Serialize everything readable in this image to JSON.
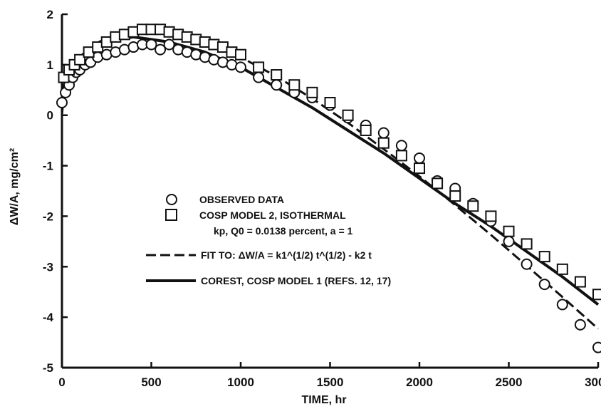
{
  "chart_data": {
    "type": "scatter",
    "xlabel": "TIME, hr",
    "ylabel": "ΔW/A, mg/cm²",
    "xlim": [
      0,
      3000
    ],
    "ylim": [
      -5,
      2
    ],
    "xticks": [
      "0",
      "500",
      "1000",
      "1500",
      "2000",
      "2500",
      "3000"
    ],
    "yticks": [
      "2",
      "1",
      "0",
      "-1",
      "-2",
      "-3",
      "-4",
      "-5"
    ],
    "grid": false,
    "legend_position": "lower-left",
    "legend": {
      "observed": "OBSERVED DATA",
      "cosp2": "COSP MODEL 2, ISOTHERMAL",
      "cosp2_params": "kp, Q0 = 0.0138 percent, a = 1",
      "fit": "FIT TO:  ΔW/A = k1^(1/2) t^(1/2) - k2 t",
      "corest": "COREST,  COSP MODEL 1 (REFS. 12, 17)"
    },
    "series": [
      {
        "name": "OBSERVED DATA",
        "marker": "circle",
        "x": [
          0,
          20,
          40,
          60,
          80,
          100,
          130,
          160,
          200,
          250,
          300,
          350,
          400,
          450,
          500,
          550,
          600,
          650,
          700,
          750,
          800,
          850,
          900,
          950,
          1000,
          1100,
          1200,
          1300,
          1400,
          1500,
          1600,
          1700,
          1800,
          1900,
          2000,
          2100,
          2200,
          2300,
          2400,
          2500,
          2600,
          2700,
          2800,
          2900,
          3000
        ],
        "y": [
          0.25,
          0.45,
          0.6,
          0.75,
          0.85,
          0.9,
          1.0,
          1.05,
          1.15,
          1.2,
          1.25,
          1.3,
          1.35,
          1.4,
          1.4,
          1.3,
          1.4,
          1.3,
          1.25,
          1.2,
          1.15,
          1.1,
          1.05,
          1.0,
          0.95,
          0.75,
          0.6,
          0.45,
          0.35,
          0.2,
          -0.05,
          -0.2,
          -0.35,
          -0.6,
          -0.85,
          -1.3,
          -1.45,
          -1.75,
          -2.1,
          -2.5,
          -2.95,
          -3.35,
          -3.75,
          -4.15,
          -4.6
        ]
      },
      {
        "name": "COSP MODEL 2, ISOTHERMAL",
        "marker": "square",
        "x": [
          10,
          40,
          70,
          100,
          150,
          200,
          250,
          300,
          350,
          400,
          450,
          500,
          550,
          600,
          650,
          700,
          750,
          800,
          850,
          900,
          950,
          1000,
          1100,
          1200,
          1300,
          1400,
          1500,
          1600,
          1700,
          1800,
          1900,
          2000,
          2100,
          2200,
          2300,
          2400,
          2500,
          2600,
          2700,
          2800,
          2900,
          3000
        ],
        "y": [
          0.75,
          0.9,
          1.0,
          1.1,
          1.25,
          1.35,
          1.45,
          1.55,
          1.6,
          1.65,
          1.7,
          1.7,
          1.7,
          1.65,
          1.6,
          1.55,
          1.5,
          1.45,
          1.4,
          1.35,
          1.25,
          1.2,
          0.95,
          0.8,
          0.6,
          0.45,
          0.25,
          0.0,
          -0.3,
          -0.55,
          -0.8,
          -1.05,
          -1.35,
          -1.6,
          -1.8,
          -2.0,
          -2.3,
          -2.55,
          -2.8,
          -3.05,
          -3.3,
          -3.55
        ]
      },
      {
        "name": "FIT TO:  ΔW/A = k1^(1/2) t^(1/2) - k2 t",
        "line_style": "dashed",
        "x": [
          0,
          10,
          25,
          50,
          100,
          200,
          300,
          400,
          500,
          600,
          700,
          800,
          900,
          1000,
          1200,
          1400,
          1600,
          1800,
          2000,
          2200,
          2400,
          2600,
          2800,
          3000
        ],
        "y": [
          0.0,
          0.38,
          0.59,
          0.82,
          1.12,
          1.44,
          1.6,
          1.67,
          1.68,
          1.64,
          1.56,
          1.45,
          1.31,
          1.15,
          0.77,
          0.33,
          -0.15,
          -0.67,
          -1.21,
          -1.78,
          -2.37,
          -2.98,
          -3.6,
          -4.23
        ]
      },
      {
        "name": "COREST,  COSP MODEL 1 (REFS. 12, 17)",
        "line_style": "solid",
        "x": [
          0,
          10,
          25,
          50,
          100,
          150,
          200,
          300,
          400,
          500,
          600,
          700,
          800,
          900,
          1000,
          1200,
          1400,
          1600,
          1800,
          2000,
          2200,
          2400,
          2600,
          2800,
          3000
        ],
        "y": [
          0.2,
          0.55,
          0.75,
          0.95,
          1.15,
          1.3,
          1.4,
          1.5,
          1.55,
          1.5,
          1.45,
          1.35,
          1.25,
          1.1,
          0.95,
          0.55,
          0.15,
          -0.3,
          -0.75,
          -1.25,
          -1.75,
          -2.2,
          -2.7,
          -3.2,
          -3.75
        ]
      }
    ]
  }
}
